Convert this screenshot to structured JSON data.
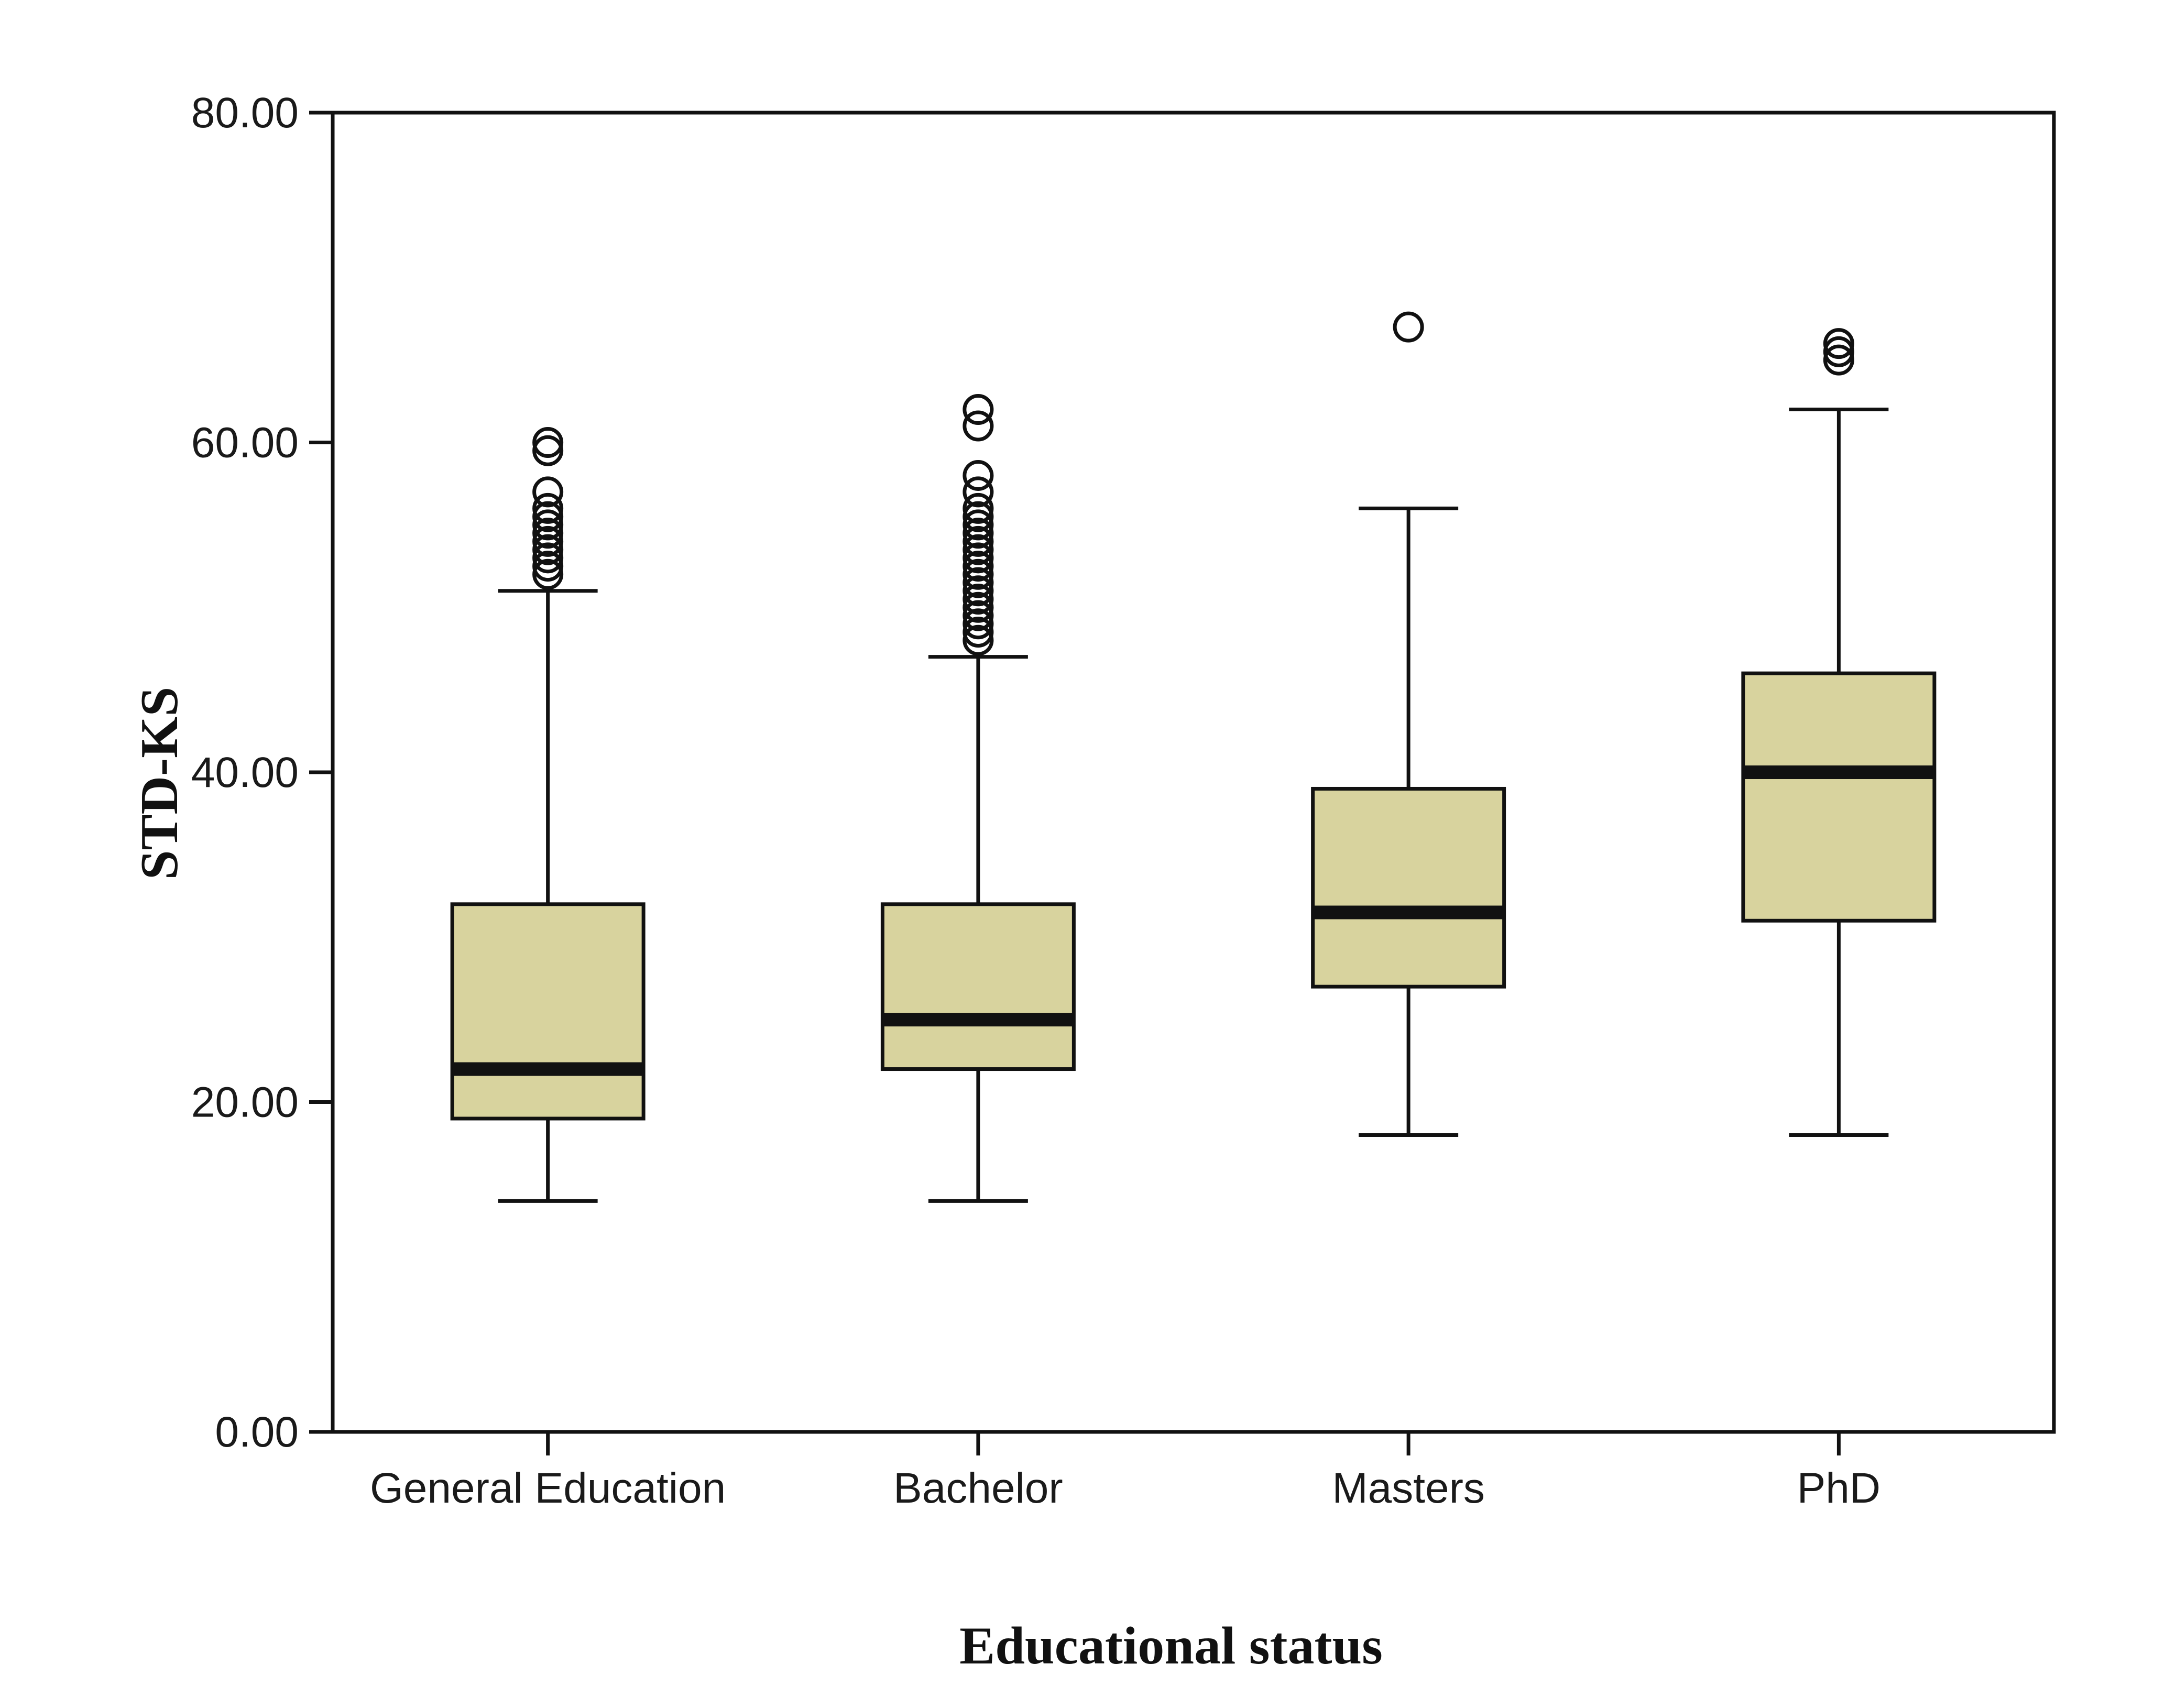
{
  "chart_data": {
    "type": "boxplot",
    "xlabel": "Educational status",
    "ylabel": "STD-KS",
    "ylim": [
      0,
      80
    ],
    "yticks": [
      0,
      20,
      40,
      60,
      80
    ],
    "ytick_labels": [
      "0.00",
      "20.00",
      "40.00",
      "60.00",
      "80.00"
    ],
    "categories": [
      "General Education",
      "Bachelor",
      "Masters",
      "PhD"
    ],
    "grid": false,
    "box_color": "#d8d39e",
    "series": [
      {
        "category": "General Education",
        "whisker_low": 14,
        "q1": 19,
        "median": 22,
        "q3": 32,
        "whisker_high": 51,
        "outliers": [
          52,
          52.5,
          53,
          53.5,
          54,
          54.5,
          55,
          55.5,
          56,
          57,
          59.5,
          60
        ]
      },
      {
        "category": "Bachelor",
        "whisker_low": 14,
        "q1": 22,
        "median": 25,
        "q3": 32,
        "whisker_high": 47,
        "outliers": [
          48,
          48.5,
          49,
          49.5,
          50,
          50.5,
          51,
          51.5,
          52,
          52.5,
          53,
          53.5,
          54,
          54.5,
          55,
          55.5,
          56,
          57,
          58,
          61,
          62
        ]
      },
      {
        "category": "Masters",
        "whisker_low": 18,
        "q1": 27,
        "median": 31.5,
        "q3": 39,
        "whisker_high": 56,
        "outliers": [
          67
        ]
      },
      {
        "category": "PhD",
        "whisker_low": 18,
        "q1": 31,
        "median": 40,
        "q3": 46,
        "whisker_high": 62,
        "outliers": [
          65,
          65.5,
          66
        ]
      }
    ]
  }
}
